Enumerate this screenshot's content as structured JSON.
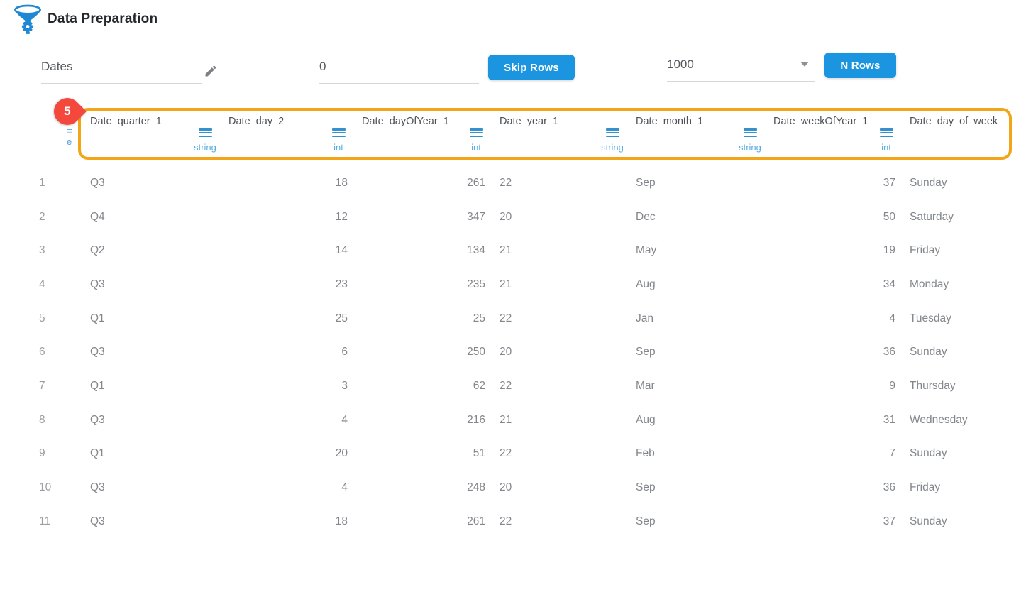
{
  "app": {
    "title": "Data Preparation"
  },
  "controls": {
    "dataset_name": {
      "value": "Dates"
    },
    "skip_rows": {
      "value": "0",
      "button_label": "Skip Rows"
    },
    "n_rows": {
      "selected_value": "1000",
      "button_label": "N Rows"
    }
  },
  "tour_badge": {
    "count": "5"
  },
  "icons": {
    "logo": "funnel-gear-logo",
    "edit": "pencil-icon",
    "dropdown": "caret-down-icon",
    "column_menu": "hamburger-menu-icon"
  },
  "colors": {
    "accent_blue": "#1b95e0",
    "type_blue": "#58aee2",
    "menu_icon_blue": "#3391cf",
    "highlight_orange": "#f2a516",
    "badge_red": "#f4483c",
    "header_text": "#4d5156",
    "body_text": "#83878c",
    "row_number_text": "#9b9fa4"
  },
  "table": {
    "columns": [
      {
        "name": "Date_quarter_1",
        "type": "string",
        "align": "left"
      },
      {
        "name": "Date_day_2",
        "type": "int",
        "align": "right"
      },
      {
        "name": "Date_dayOfYear_1",
        "type": "int",
        "align": "right"
      },
      {
        "name": "Date_year_1",
        "type": "string",
        "align": "left"
      },
      {
        "name": "Date_month_1",
        "type": "string",
        "align": "left"
      },
      {
        "name": "Date_weekOfYear_1",
        "type": "int",
        "align": "right"
      },
      {
        "name": "Date_day_of_week",
        "type": "",
        "align": "left"
      }
    ],
    "rows": [
      {
        "n": "1",
        "cells": [
          "Q3",
          "18",
          "261",
          "22",
          "Sep",
          "37",
          "Sunday"
        ]
      },
      {
        "n": "2",
        "cells": [
          "Q4",
          "12",
          "347",
          "20",
          "Dec",
          "50",
          "Saturday"
        ]
      },
      {
        "n": "3",
        "cells": [
          "Q2",
          "14",
          "134",
          "21",
          "May",
          "19",
          "Friday"
        ]
      },
      {
        "n": "4",
        "cells": [
          "Q3",
          "23",
          "235",
          "21",
          "Aug",
          "34",
          "Monday"
        ]
      },
      {
        "n": "5",
        "cells": [
          "Q1",
          "25",
          "25",
          "22",
          "Jan",
          "4",
          "Tuesday"
        ]
      },
      {
        "n": "6",
        "cells": [
          "Q3",
          "6",
          "250",
          "20",
          "Sep",
          "36",
          "Sunday"
        ]
      },
      {
        "n": "7",
        "cells": [
          "Q1",
          "3",
          "62",
          "22",
          "Mar",
          "9",
          "Thursday"
        ]
      },
      {
        "n": "8",
        "cells": [
          "Q3",
          "4",
          "216",
          "21",
          "Aug",
          "31",
          "Wednesday"
        ]
      },
      {
        "n": "9",
        "cells": [
          "Q1",
          "20",
          "51",
          "22",
          "Feb",
          "7",
          "Sunday"
        ]
      },
      {
        "n": "10",
        "cells": [
          "Q3",
          "4",
          "248",
          "20",
          "Sep",
          "36",
          "Friday"
        ]
      },
      {
        "n": "11",
        "cells": [
          "Q3",
          "18",
          "261",
          "22",
          "Sep",
          "37",
          "Sunday"
        ]
      }
    ]
  }
}
